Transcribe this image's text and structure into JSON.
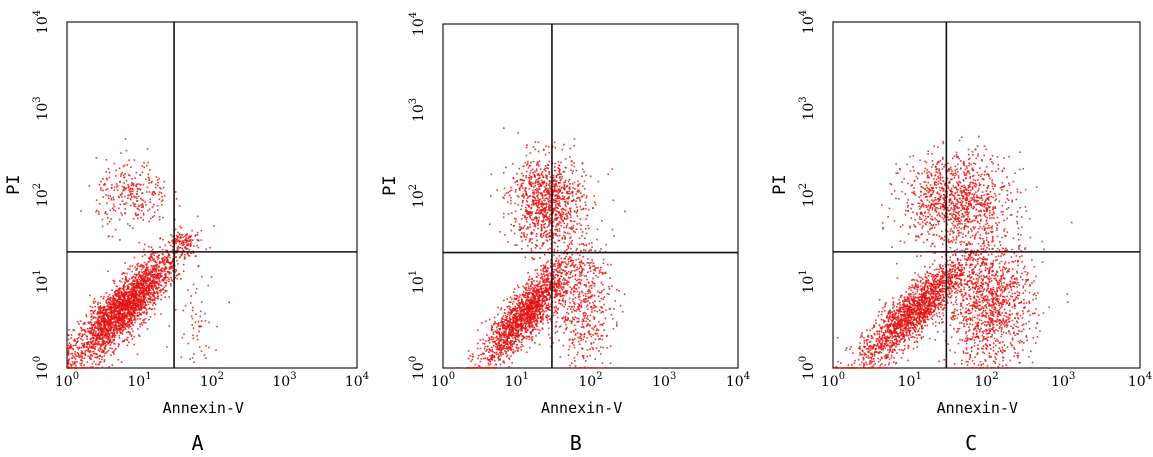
{
  "dot_color": "#e41414",
  "chart_data": [
    {
      "type": "scatter",
      "panel_label": "A",
      "xlabel": "Annexin-V",
      "ylabel": "PI",
      "x_scale": "log",
      "y_scale": "log",
      "xlim": [
        1,
        10000
      ],
      "ylim": [
        1,
        10000
      ],
      "x_ticks": [
        {
          "label": "10",
          "exp": "0"
        },
        {
          "label": "10",
          "exp": "1"
        },
        {
          "label": "10",
          "exp": "2"
        },
        {
          "label": "10",
          "exp": "3"
        },
        {
          "label": "10",
          "exp": "4"
        }
      ],
      "y_ticks": [
        {
          "label": "10",
          "exp": "0"
        },
        {
          "label": "10",
          "exp": "1"
        },
        {
          "label": "10",
          "exp": "2"
        },
        {
          "label": "10",
          "exp": "3"
        },
        {
          "label": "10",
          "exp": "4"
        }
      ],
      "quadrant_gate": {
        "x": 30,
        "y": 22
      },
      "clusters": [
        {
          "x": [
            1,
            35
          ],
          "y": [
            1,
            25
          ],
          "n": 2600
        },
        {
          "x": [
            2.5,
            25
          ],
          "y": [
            40,
            250
          ],
          "n": 280
        },
        {
          "x": [
            25,
            60
          ],
          "y": [
            20,
            40
          ],
          "n": 90
        },
        {
          "x": [
            30,
            120
          ],
          "y": [
            1,
            15
          ],
          "n": 60
        }
      ]
    },
    {
      "type": "scatter",
      "panel_label": "B",
      "xlabel": "Annexin-V",
      "ylabel": "PI",
      "x_scale": "log",
      "y_scale": "log",
      "xlim": [
        1,
        10000
      ],
      "ylim": [
        1,
        10000
      ],
      "x_ticks": [
        {
          "label": "10",
          "exp": "0"
        },
        {
          "label": "10",
          "exp": "1"
        },
        {
          "label": "10",
          "exp": "2"
        },
        {
          "label": "10",
          "exp": "3"
        },
        {
          "label": "10",
          "exp": "4"
        }
      ],
      "y_ticks": [
        {
          "label": "10",
          "exp": "0"
        },
        {
          "label": "10",
          "exp": "1"
        },
        {
          "label": "10",
          "exp": "2"
        },
        {
          "label": "10",
          "exp": "3"
        },
        {
          "label": "10",
          "exp": "4"
        }
      ],
      "quadrant_gate": {
        "x": 30,
        "y": 22
      },
      "clusters": [
        {
          "x": [
            3,
            60
          ],
          "y": [
            1,
            20
          ],
          "n": 1800
        },
        {
          "x": [
            8,
            80
          ],
          "y": [
            25,
            300
          ],
          "n": 1000
        },
        {
          "x": [
            30,
            200
          ],
          "y": [
            1,
            30
          ],
          "n": 500
        }
      ]
    },
    {
      "type": "scatter",
      "panel_label": "C",
      "xlabel": "Annexin-V",
      "ylabel": "PI",
      "x_scale": "log",
      "y_scale": "log",
      "xlim": [
        1,
        10000
      ],
      "ylim": [
        1,
        10000
      ],
      "x_ticks": [
        {
          "label": "10",
          "exp": "0"
        },
        {
          "label": "10",
          "exp": "1"
        },
        {
          "label": "10",
          "exp": "2"
        },
        {
          "label": "10",
          "exp": "3"
        },
        {
          "label": "10",
          "exp": "4"
        }
      ],
      "y_ticks": [
        {
          "label": "10",
          "exp": "0"
        },
        {
          "label": "10",
          "exp": "1"
        },
        {
          "label": "10",
          "exp": "2"
        },
        {
          "label": "10",
          "exp": "3"
        },
        {
          "label": "10",
          "exp": "4"
        }
      ],
      "quadrant_gate": {
        "x": 30,
        "y": 22
      },
      "clusters": [
        {
          "x": [
            2,
            60
          ],
          "y": [
            1,
            20
          ],
          "n": 1800
        },
        {
          "x": [
            8,
            200
          ],
          "y": [
            25,
            300
          ],
          "n": 1100
        },
        {
          "x": [
            30,
            400
          ],
          "y": [
            1,
            30
          ],
          "n": 1200
        }
      ]
    }
  ]
}
